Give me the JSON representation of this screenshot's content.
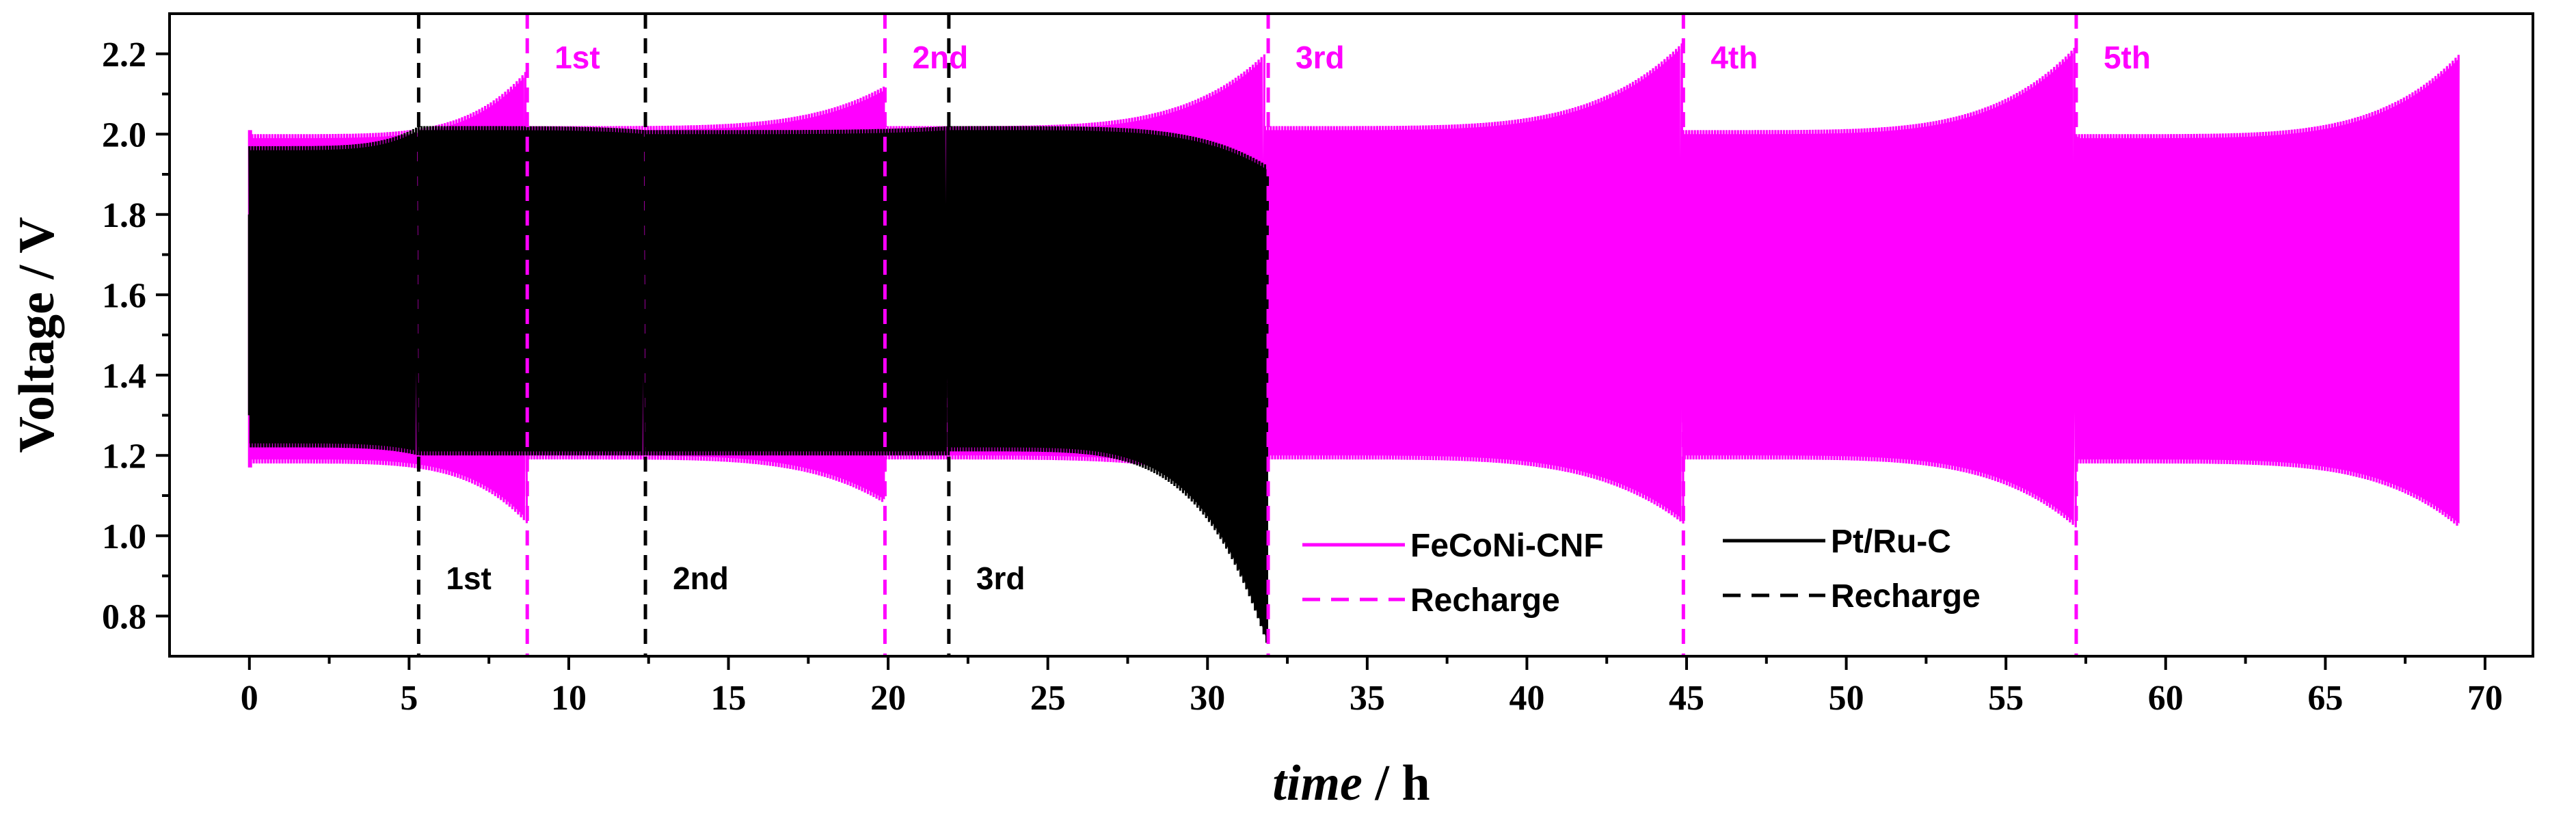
{
  "colors": {
    "feconi": "#ff00ff",
    "ptru": "#000000",
    "axis": "#000000",
    "background": "#ffffff"
  },
  "chart_data": {
    "type": "line",
    "title": "",
    "xlabel_italic": "time",
    "xlabel_unit": " / h",
    "ylabel": "Voltage / V",
    "xlim": [
      -2.5,
      71.5
    ],
    "ylim": [
      0.7,
      2.3
    ],
    "xticks": [
      0,
      5,
      10,
      15,
      20,
      25,
      30,
      35,
      40,
      45,
      50,
      55,
      60,
      65,
      70
    ],
    "yticks": [
      0.8,
      1.0,
      1.2,
      1.4,
      1.6,
      1.8,
      2.0,
      2.2
    ],
    "xtick_labels": [
      "0",
      "5",
      "10",
      "15",
      "20",
      "25",
      "30",
      "35",
      "40",
      "45",
      "50",
      "55",
      "60",
      "65",
      "70"
    ],
    "ytick_labels": [
      "0.8",
      "1.0",
      "1.2",
      "1.4",
      "1.6",
      "1.8",
      "2.0",
      "2.2"
    ],
    "series": [
      {
        "name": "FeCoNi-CNF",
        "style": "oscillating charge/discharge band",
        "start": 0,
        "end": 69.2,
        "initial_spike": {
          "charge": 2.01,
          "discharge": 1.17
        },
        "segments": [
          {
            "start": 0,
            "end": 8.7,
            "charge_start": 2.0,
            "charge_end": 2.16,
            "discharge_start": 1.18,
            "discharge_end": 1.03
          },
          {
            "start": 8.7,
            "end": 19.9,
            "charge_start": 2.02,
            "charge_end": 2.12,
            "discharge_start": 1.19,
            "discharge_end": 1.08
          },
          {
            "start": 19.9,
            "end": 31.8,
            "charge_start": 2.02,
            "charge_end": 2.2,
            "discharge_start": 1.19,
            "discharge_end": 1.1
          },
          {
            "start": 31.8,
            "end": 44.9,
            "charge_start": 2.02,
            "charge_end": 2.23,
            "discharge_start": 1.19,
            "discharge_end": 1.03
          },
          {
            "start": 44.9,
            "end": 57.2,
            "charge_start": 2.01,
            "charge_end": 2.22,
            "discharge_start": 1.19,
            "discharge_end": 1.02
          },
          {
            "start": 57.2,
            "end": 69.2,
            "charge_start": 2.0,
            "charge_end": 2.2,
            "discharge_start": 1.18,
            "discharge_end": 1.02
          }
        ]
      },
      {
        "name": "Pt/Ru-C",
        "style": "oscillating charge/discharge band",
        "start": 0,
        "end": 31.9,
        "initial_spike": {
          "charge": 1.8,
          "discharge": 1.3
        },
        "segments": [
          {
            "start": 0,
            "end": 5.3,
            "charge_start": 1.97,
            "charge_end": 2.02,
            "discharge_start": 1.22,
            "discharge_end": 1.2
          },
          {
            "start": 5.3,
            "end": 12.4,
            "charge_start": 2.02,
            "charge_end": 2.01,
            "discharge_start": 1.2,
            "discharge_end": 1.2
          },
          {
            "start": 12.4,
            "end": 21.9,
            "charge_start": 2.01,
            "charge_end": 2.02,
            "discharge_start": 1.2,
            "discharge_end": 1.2
          },
          {
            "start": 21.9,
            "end": 31.9,
            "charge_start": 2.02,
            "charge_end": 1.92,
            "discharge_start": 1.21,
            "discharge_end": 0.72
          }
        ]
      }
    ],
    "recharge_lines": [
      {
        "series": "FeCoNi-CNF",
        "x": 8.7,
        "label": "1st",
        "label_pos": "top"
      },
      {
        "series": "FeCoNi-CNF",
        "x": 19.9,
        "label": "2nd",
        "label_pos": "top"
      },
      {
        "series": "FeCoNi-CNF",
        "x": 31.9,
        "label": "3rd",
        "label_pos": "top"
      },
      {
        "series": "FeCoNi-CNF",
        "x": 44.9,
        "label": "4th",
        "label_pos": "top"
      },
      {
        "series": "FeCoNi-CNF",
        "x": 57.2,
        "label": "5th",
        "label_pos": "top"
      },
      {
        "series": "Pt/Ru-C",
        "x": 5.3,
        "label": "1st",
        "label_pos": "bottom"
      },
      {
        "series": "Pt/Ru-C",
        "x": 12.4,
        "label": "2nd",
        "label_pos": "bottom"
      },
      {
        "series": "Pt/Ru-C",
        "x": 21.9,
        "label": "3rd",
        "label_pos": "bottom"
      }
    ],
    "legend": {
      "position": "bottom-center",
      "entries": [
        {
          "label": "FeCoNi-CNF",
          "series": "FeCoNi-CNF",
          "line": "solid"
        },
        {
          "label": "Recharge",
          "series": "FeCoNi-CNF",
          "line": "dashed"
        },
        {
          "label": "Pt/Ru-C",
          "series": "Pt/Ru-C",
          "line": "solid"
        },
        {
          "label": "Recharge",
          "series": "Pt/Ru-C",
          "line": "dashed"
        }
      ]
    },
    "grid": false
  }
}
